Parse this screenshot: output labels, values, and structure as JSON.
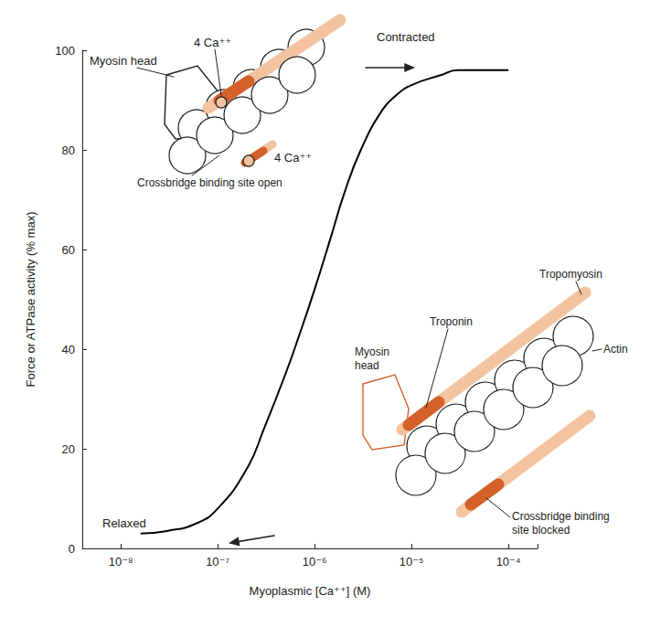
{
  "chart_data": {
    "type": "line",
    "x_label": "Myoplasmic [Ca⁺⁺] (M)",
    "y_label": "Force or ATPase activity (% max)",
    "x": [
      1.6e-08,
      3e-08,
      6e-08,
      1e-07,
      2e-07,
      3e-07,
      5e-07,
      7e-07,
      1e-06,
      1.5e-06,
      2e-06,
      3e-06,
      5e-06,
      7e-06,
      1e-05,
      2e-05,
      3e-05,
      5e-05,
      0.0001
    ],
    "values": [
      3,
      3.5,
      5,
      8,
      16,
      24,
      35,
      43,
      52,
      63,
      71,
      80,
      88,
      91,
      93,
      95,
      96,
      96,
      96
    ],
    "color": "#000000",
    "log": "x",
    "grid": false,
    "xlim": [
      4e-09,
      0.0002
    ],
    "xticks": [
      {
        "value": 1e-08,
        "label": "10⁻⁸"
      },
      {
        "value": 1e-07,
        "label": "10⁻⁷"
      },
      {
        "value": 1e-06,
        "label": "10⁻⁶"
      },
      {
        "value": 1e-05,
        "label": "10⁻⁵"
      },
      {
        "value": 0.0001,
        "label": "10⁻⁴"
      }
    ],
    "ylim": [
      0,
      100
    ],
    "yticks": [
      0,
      20,
      40,
      60,
      80,
      100
    ],
    "annotations": {
      "contracted": "Contracted",
      "relaxed": "Relaxed"
    },
    "diagram_contracted": {
      "myosin": "Myosin head",
      "calcium": [
        "4 Ca⁺⁺",
        "4 Ca⁺⁺"
      ],
      "site": "Crossbridge binding site open"
    },
    "diagram_relaxed": {
      "myosin": "Myosin head",
      "troponin": "Troponin",
      "tropomyosin": "Tropomyosin",
      "actin": "Actin",
      "site": "Crossbridge binding site blocked"
    }
  }
}
